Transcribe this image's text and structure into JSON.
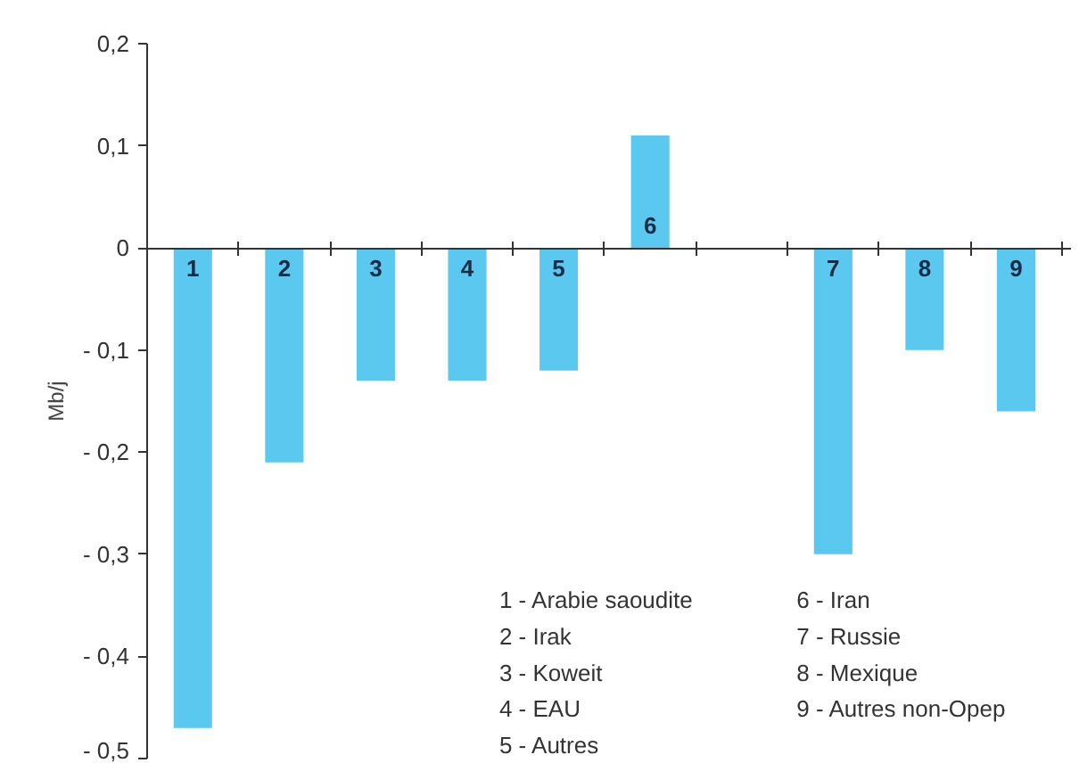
{
  "chart_data": {
    "type": "bar",
    "ylabel": "Mb/j",
    "categories": [
      "1",
      "2",
      "3",
      "4",
      "5",
      "6",
      null,
      "7",
      "8",
      "9"
    ],
    "values": [
      -0.47,
      -0.21,
      -0.13,
      -0.13,
      -0.12,
      0.11,
      null,
      -0.3,
      -0.1,
      -0.16
    ],
    "color": "#5bc8ef",
    "ylim": [
      -0.5,
      0.2
    ],
    "yticks": [
      {
        "value": -0.5,
        "label": "- 0,5"
      },
      {
        "value": -0.4,
        "label": "- 0,4"
      },
      {
        "value": -0.3,
        "label": "- 0,3"
      },
      {
        "value": -0.2,
        "label": "- 0,2"
      },
      {
        "value": -0.1,
        "label": "- 0,1"
      },
      0,
      {
        "value": 0.1,
        "label": "0,1"
      },
      {
        "value": 0.2,
        "label": "0,2"
      }
    ],
    "grid": false,
    "annotations": [
      "1 - Arabie saoudite",
      "2 - Irak",
      "3 - Koweit",
      "4 - EAU",
      "5 - Autres",
      "6 - Iran",
      "7 - Russie",
      "8 - Mexique",
      "9 - Autres non-Opep"
    ]
  }
}
